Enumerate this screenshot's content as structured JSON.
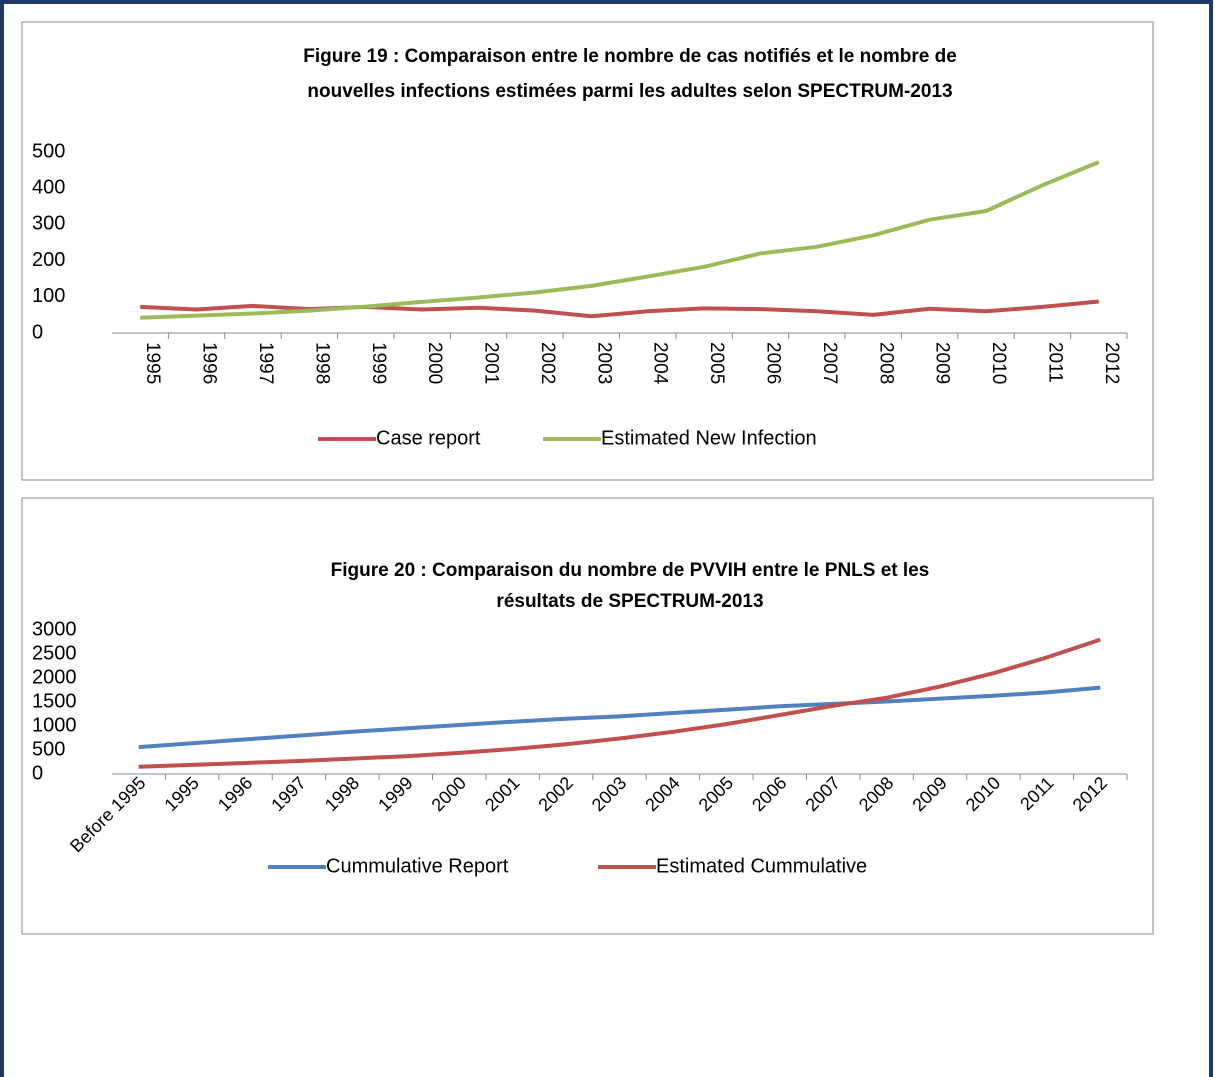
{
  "chart_data": [
    {
      "type": "line",
      "title": [
        "Figure 19 : Comparaison entre le nombre de cas notifiés et le nombre de",
        "nouvelles infections estimées parmi les adultes selon SPECTRUM-2013"
      ],
      "categories": [
        "1995",
        "1996",
        "1997",
        "1998",
        "1999",
        "2000",
        "2001",
        "2002",
        "2003",
        "2004",
        "2005",
        "2006",
        "2007",
        "2008",
        "2009",
        "2010",
        "2011",
        "2012"
      ],
      "series": [
        {
          "name": "Case report",
          "color": "#c0504d",
          "values": [
            72,
            65,
            75,
            66,
            72,
            65,
            70,
            62,
            46,
            60,
            68,
            66,
            60,
            50,
            67,
            60,
            72,
            87
          ]
        },
        {
          "name": "Estimated New Infection",
          "color": "#9bbb59",
          "values": [
            42,
            48,
            54,
            62,
            73,
            86,
            98,
            112,
            130,
            156,
            183,
            220,
            238,
            270,
            313,
            337,
            408,
            472
          ]
        }
      ],
      "ylim": [
        0,
        500
      ],
      "yticks": [
        0,
        100,
        200,
        300,
        400,
        500
      ],
      "grid": false,
      "legend": "bottom",
      "x_label_rotation": 90
    },
    {
      "type": "line",
      "title": [
        "Figure 20 : Comparaison du nombre de PVVIH entre le PNLS et les",
        "résultats de SPECTRUM-2013"
      ],
      "categories": [
        "Before 1995",
        "1995",
        "1996",
        "1997",
        "1998",
        "1999",
        "2000",
        "2001",
        "2002",
        "2003",
        "2004",
        "2005",
        "2006",
        "2007",
        "2008",
        "2009",
        "2010",
        "2011",
        "2012"
      ],
      "series": [
        {
          "name": "Cummulative Report",
          "color": "#4f81bd",
          "values": [
            560,
            640,
            720,
            800,
            880,
            950,
            1020,
            1090,
            1150,
            1200,
            1270,
            1340,
            1410,
            1460,
            1510,
            1570,
            1630,
            1700,
            1800
          ]
        },
        {
          "name": "Estimated Cummulative",
          "color": "#c0504d",
          "values": [
            150,
            190,
            230,
            270,
            320,
            370,
            440,
            520,
            620,
            740,
            880,
            1040,
            1230,
            1420,
            1590,
            1820,
            2100,
            2430,
            2800
          ]
        }
      ],
      "ylim": [
        0,
        3000
      ],
      "yticks": [
        0,
        500,
        1000,
        1500,
        2000,
        2500,
        3000
      ],
      "grid": false,
      "legend": "bottom",
      "x_label_rotation": 45
    }
  ]
}
